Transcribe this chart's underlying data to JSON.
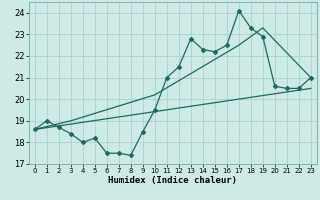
{
  "title": "",
  "xlabel": "Humidex (Indice chaleur)",
  "background_color": "#ceeae6",
  "grid_color": "#b0d4d0",
  "line_color": "#1a6b5a",
  "xlim": [
    -0.5,
    23.5
  ],
  "ylim": [
    17.0,
    24.5
  ],
  "xticks": [
    0,
    1,
    2,
    3,
    4,
    5,
    6,
    7,
    8,
    9,
    10,
    11,
    12,
    13,
    14,
    15,
    16,
    17,
    18,
    19,
    20,
    21,
    22,
    23
  ],
  "yticks": [
    17,
    18,
    19,
    20,
    21,
    22,
    23,
    24
  ],
  "line1_x": [
    0,
    1,
    2,
    3,
    4,
    5,
    6,
    7,
    8,
    9,
    10,
    11,
    12,
    13,
    14,
    15,
    16,
    17,
    18,
    19,
    20,
    21,
    22,
    23
  ],
  "line1_y": [
    18.6,
    19.0,
    18.7,
    18.4,
    18.0,
    18.2,
    17.5,
    17.5,
    17.4,
    18.5,
    19.5,
    21.0,
    21.5,
    22.8,
    22.3,
    22.2,
    22.5,
    24.1,
    23.3,
    22.9,
    20.6,
    20.5,
    20.5,
    21.0
  ],
  "line2_x": [
    0,
    3,
    10,
    17,
    19,
    23
  ],
  "line2_y": [
    18.6,
    19.0,
    20.2,
    22.5,
    23.3,
    21.0
  ],
  "line3_x": [
    0,
    23
  ],
  "line3_y": [
    18.6,
    20.5
  ]
}
